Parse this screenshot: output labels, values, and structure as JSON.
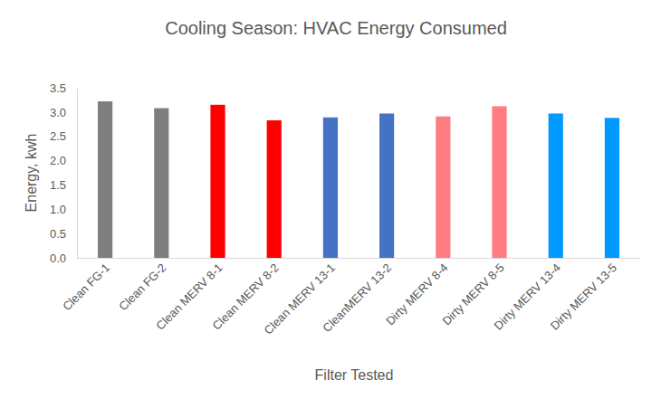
{
  "chart_data": {
    "type": "bar",
    "title": "Cooling Season: HVAC Energy Consumed",
    "x_label": "Filter Tested",
    "y_label": "Energy, kwh",
    "categories": [
      "Clean FG-1",
      "Clean FG-2",
      "Clean MERV 8-1",
      "Clean MERV 8-2",
      "Clean MERV 13-1",
      "CleanMERV 13-2",
      "Dirty MERV 8-4",
      "Dirty MERV 8-5",
      "Dirty MERV 13-4",
      "Dirty MERV 13-5"
    ],
    "values": [
      3.22,
      3.08,
      3.15,
      2.83,
      2.89,
      2.97,
      2.91,
      3.12,
      2.97,
      2.88
    ],
    "colors": [
      "#7f7f7f",
      "#7f7f7f",
      "#ff0000",
      "#ff0000",
      "#4472c4",
      "#4472c4",
      "#ff7c80",
      "#ff7c80",
      "#0099ff",
      "#0099ff"
    ],
    "ylim": [
      0,
      3.5
    ],
    "yticks": [
      {
        "value": 0,
        "label": "0.0"
      },
      0.5,
      {
        "value": 1,
        "label": "1.0"
      },
      1.5,
      {
        "value": 2,
        "label": "2.0"
      },
      2.5,
      {
        "value": 3,
        "label": "3.0"
      },
      3.5
    ],
    "grid": false
  }
}
